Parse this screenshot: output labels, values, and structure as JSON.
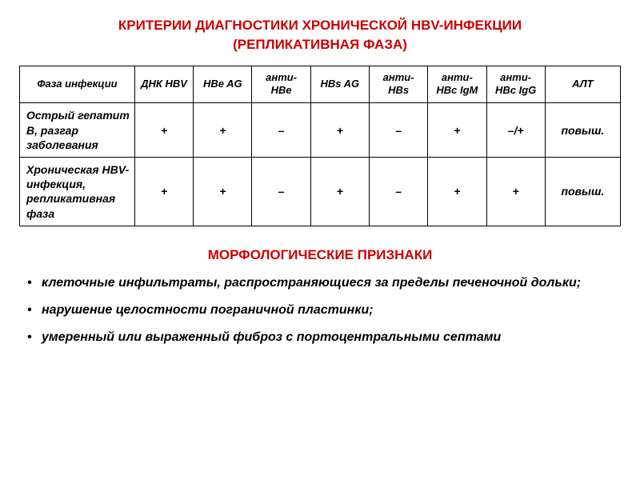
{
  "colors": {
    "accent": "#cc0000",
    "text": "#000000",
    "background": "#ffffff"
  },
  "title": {
    "line1": "КРИТЕРИИ ДИАГНОСТИКИ ХРОНИЧЕСКОЙ HBV-ИНФЕКЦИИ",
    "line2": "(РЕПЛИКАТИВНАЯ ФАЗА)",
    "fontsize": 17
  },
  "table": {
    "header_fontsize": 13,
    "cell_fontsize": 14,
    "columns": [
      "Фаза инфекции",
      "ДНК HBV",
      "HBe AG",
      "анти-HBe",
      "HBs AG",
      "анти-HBs",
      "анти-HBc IgM",
      "анти-HBc IgG",
      "АЛТ"
    ],
    "rows": [
      {
        "label": "Острый гепатит В, разгар заболевания",
        "cells": [
          "+",
          "+",
          "–",
          "+",
          "–",
          "+",
          "–/+",
          "повыш."
        ]
      },
      {
        "label": "Хроническая HBV-инфекция, репликативная фаза",
        "cells": [
          "+",
          "+",
          "–",
          "+",
          "–",
          "+",
          "+",
          "повыш."
        ]
      }
    ]
  },
  "section_title": {
    "text": "МОРФОЛОГИЧЕСКИЕ ПРИЗНАКИ",
    "fontsize": 17
  },
  "bullets": {
    "fontsize": 16,
    "items": [
      "клеточные инфильтраты, распространяющиеся за пределы печеночной дольки;",
      "нарушение целостности пограничной пластинки;",
      "умеренный или выраженный фиброз с портоцентральными септами"
    ]
  }
}
